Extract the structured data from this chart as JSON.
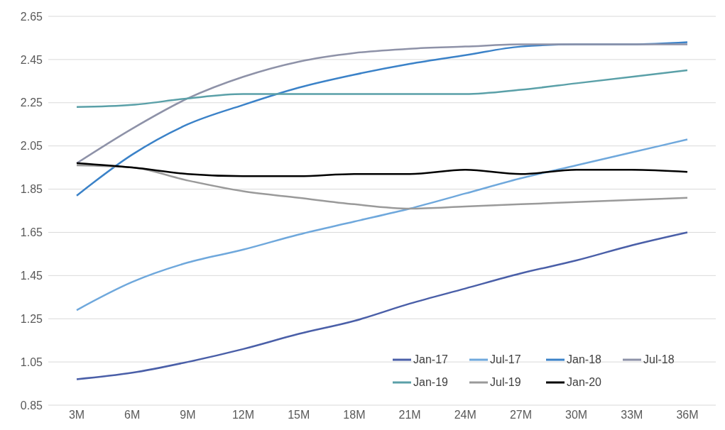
{
  "chart_data": {
    "type": "line",
    "categories": [
      "3M",
      "6M",
      "9M",
      "12M",
      "15M",
      "18M",
      "21M",
      "24M",
      "27M",
      "30M",
      "33M",
      "36M"
    ],
    "series": [
      {
        "name": "Jan-17",
        "color": "#4a5fa8",
        "values": [
          0.97,
          1.0,
          1.05,
          1.11,
          1.18,
          1.24,
          1.32,
          1.39,
          1.46,
          1.52,
          1.59,
          1.65
        ]
      },
      {
        "name": "Jul-17",
        "color": "#6fa8dc",
        "values": [
          1.29,
          1.42,
          1.51,
          1.57,
          1.64,
          1.7,
          1.76,
          1.83,
          1.9,
          1.96,
          2.02,
          2.08
        ]
      },
      {
        "name": "Jan-18",
        "color": "#3b82c8",
        "values": [
          1.82,
          2.01,
          2.15,
          2.24,
          2.32,
          2.38,
          2.43,
          2.47,
          2.51,
          2.52,
          2.52,
          2.53
        ]
      },
      {
        "name": "Jul-18",
        "color": "#8e92a8",
        "values": [
          1.97,
          2.13,
          2.27,
          2.37,
          2.44,
          2.48,
          2.5,
          2.51,
          2.52,
          2.52,
          2.52,
          2.52
        ]
      },
      {
        "name": "Jan-19",
        "color": "#5aa0a8",
        "values": [
          2.23,
          2.24,
          2.27,
          2.29,
          2.29,
          2.29,
          2.29,
          2.29,
          2.31,
          2.34,
          2.37,
          2.4
        ]
      },
      {
        "name": "Jul-19",
        "color": "#9a9a9a",
        "values": [
          1.96,
          1.95,
          1.89,
          1.84,
          1.81,
          1.78,
          1.76,
          1.77,
          1.78,
          1.79,
          1.8,
          1.81
        ]
      },
      {
        "name": "Jan-20",
        "color": "#000000",
        "values": [
          1.97,
          1.95,
          1.92,
          1.91,
          1.91,
          1.92,
          1.92,
          1.94,
          1.92,
          1.94,
          1.94,
          1.93
        ]
      }
    ],
    "ylim": [
      0.85,
      2.65
    ],
    "yticks": [
      0.85,
      1.05,
      1.25,
      1.45,
      1.65,
      1.85,
      2.05,
      2.25,
      2.45,
      2.65
    ],
    "grid": "y",
    "legend": "bottom right",
    "marker": "none",
    "line_style": "solid"
  }
}
